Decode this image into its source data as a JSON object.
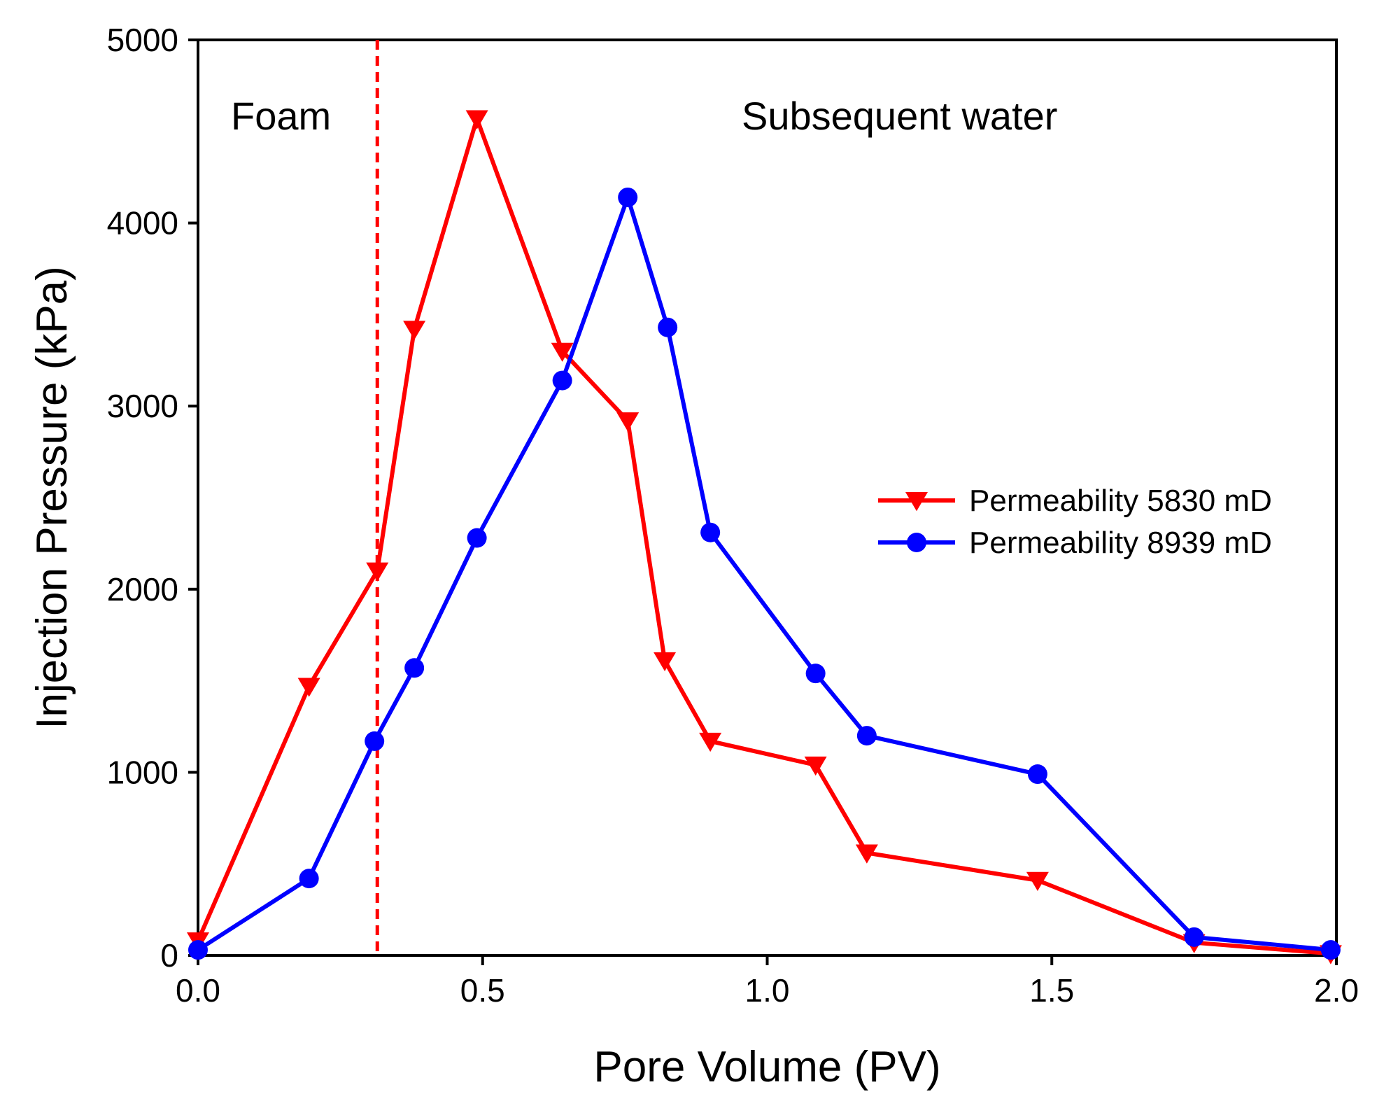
{
  "chart_data": {
    "type": "line",
    "title": "",
    "xlabel": "Pore Volume (PV)",
    "ylabel": "Injection Pressure (kPa)",
    "xlim": [
      0.0,
      2.0
    ],
    "ylim": [
      0,
      5000
    ],
    "xticks": [
      "0.0",
      "0.5",
      "1.0",
      "1.5",
      "2.0"
    ],
    "yticks": [
      "0",
      "1000",
      "2000",
      "3000",
      "4000",
      "5000"
    ],
    "grid": false,
    "legend_position": "right",
    "annotations": {
      "foam_label": "Foam",
      "water_label": "Subsequent water",
      "divider_x": 0.315
    },
    "series": [
      {
        "name": "Permeability 5830 mD",
        "color": "#ff0000",
        "marker": "triangle-down",
        "x": [
          0.0,
          0.195,
          0.315,
          0.38,
          0.49,
          0.64,
          0.755,
          0.82,
          0.9,
          1.085,
          1.175,
          1.475,
          1.75,
          1.99
        ],
        "y": [
          80,
          1470,
          2100,
          3420,
          4570,
          3300,
          2920,
          1610,
          1170,
          1040,
          560,
          410,
          70,
          10
        ]
      },
      {
        "name": "Permeability 8939 mD",
        "color": "#0000ff",
        "marker": "circle",
        "x": [
          0.0,
          0.195,
          0.31,
          0.38,
          0.49,
          0.64,
          0.755,
          0.825,
          0.9,
          1.085,
          1.175,
          1.475,
          1.75,
          1.99
        ],
        "y": [
          30,
          420,
          1170,
          1570,
          2280,
          3140,
          4140,
          3430,
          2310,
          1540,
          1200,
          990,
          100,
          30
        ]
      }
    ]
  }
}
